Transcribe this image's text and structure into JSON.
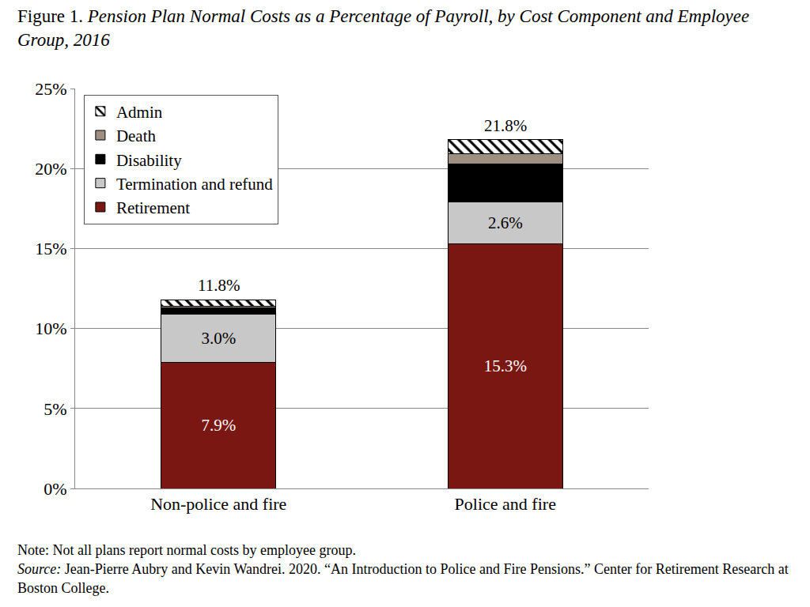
{
  "chart_data": {
    "type": "bar",
    "stacked": true,
    "figure_label": "Figure 1.",
    "title": "Pension Plan Normal Costs as a Percentage of Payroll, by Cost Component and Employee Group, 2016",
    "categories": [
      "Non-police and fire",
      "Police and fire"
    ],
    "series": [
      {
        "name": "Retirement",
        "color": "#7a1712",
        "values": [
          7.9,
          15.3
        ],
        "value_labels": [
          "7.9%",
          "15.3%"
        ]
      },
      {
        "name": "Termination and refund",
        "color": "#c8c8c8",
        "values": [
          3.0,
          2.6
        ],
        "value_labels": [
          "3.0%",
          "2.6%"
        ]
      },
      {
        "name": "Disability",
        "color": "#000000",
        "values": [
          0.4,
          2.4
        ]
      },
      {
        "name": "Death",
        "color": "#9e9080",
        "values": [
          0.1,
          0.6
        ]
      },
      {
        "name": "Admin",
        "color": "#ffffff",
        "marker": "hatch",
        "values": [
          0.4,
          0.9
        ]
      }
    ],
    "totals": [
      11.8,
      21.8
    ],
    "total_labels": [
      "11.8%",
      "21.8%"
    ],
    "data_labels": true,
    "ylim": [
      0,
      25
    ],
    "yticks": [
      {
        "value": 0,
        "label": "0%"
      },
      {
        "value": 5,
        "label": "5%"
      },
      {
        "value": 10,
        "label": "10%"
      },
      {
        "value": 15,
        "label": "15%"
      },
      {
        "value": 20,
        "label": "20%"
      },
      {
        "value": 25,
        "label": "25%"
      }
    ],
    "grid": true,
    "legend": "top left",
    "note": "Note: Not all plans report normal costs by employee group.",
    "source_label": "Source:",
    "source": " Jean-Pierre Aubry and Kevin Wandrei. 2020. “An Introduction to Police and Fire Pensions.” Center for Retirement Research at Boston College."
  }
}
